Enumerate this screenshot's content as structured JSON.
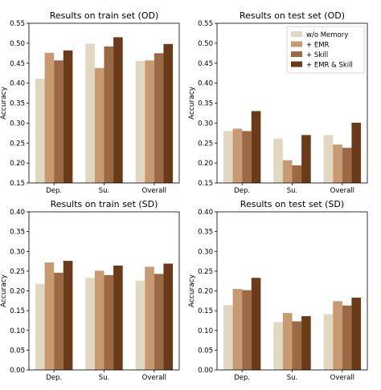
{
  "chart_data": [
    {
      "type": "bar",
      "title": "Results on train set (OD)",
      "xlabel": "",
      "ylabel": "Accuracy",
      "ylim": [
        0.15,
        0.55
      ],
      "yticks": [
        0.15,
        0.2,
        0.25,
        0.3,
        0.35,
        0.4,
        0.45,
        0.5,
        0.55
      ],
      "categories": [
        "Dep.",
        "Su.",
        "Overall"
      ],
      "grid": false,
      "legend": null,
      "series": [
        {
          "name": "w/o Memory",
          "values": [
            0.411,
            0.499,
            0.455
          ]
        },
        {
          "name": "+ EMR",
          "values": [
            0.476,
            0.438,
            0.457
          ]
        },
        {
          "name": "+ Skill",
          "values": [
            0.457,
            0.492,
            0.475
          ]
        },
        {
          "name": "+ EMR & Skill",
          "values": [
            0.482,
            0.515,
            0.498
          ]
        }
      ]
    },
    {
      "type": "bar",
      "title": "Results on test set (OD)",
      "xlabel": "",
      "ylabel": "Accuracy",
      "ylim": [
        0.15,
        0.55
      ],
      "yticks": [
        0.15,
        0.2,
        0.25,
        0.3,
        0.35,
        0.4,
        0.45,
        0.5,
        0.55
      ],
      "categories": [
        "Dep.",
        "Su.",
        "Overall"
      ],
      "grid": false,
      "legend": "top-right",
      "series": [
        {
          "name": "w/o Memory",
          "values": [
            0.28,
            0.261,
            0.27
          ]
        },
        {
          "name": "+ EMR",
          "values": [
            0.286,
            0.207,
            0.246
          ]
        },
        {
          "name": "+ Skill",
          "values": [
            0.28,
            0.194,
            0.238
          ]
        },
        {
          "name": "+ EMR & Skill",
          "values": [
            0.33,
            0.27,
            0.301
          ]
        }
      ]
    },
    {
      "type": "bar",
      "title": "Results on train set (SD)",
      "xlabel": "",
      "ylabel": "Accuracy",
      "ylim": [
        0.0,
        0.4
      ],
      "yticks": [
        0.0,
        0.05,
        0.1,
        0.15,
        0.2,
        0.25,
        0.3,
        0.35,
        0.4
      ],
      "categories": [
        "Dep.",
        "Su.",
        "Overall"
      ],
      "grid": false,
      "legend": null,
      "series": [
        {
          "name": "w/o Memory",
          "values": [
            0.218,
            0.233,
            0.226
          ]
        },
        {
          "name": "+ EMR",
          "values": [
            0.272,
            0.251,
            0.261
          ]
        },
        {
          "name": "+ Skill",
          "values": [
            0.246,
            0.24,
            0.243
          ]
        },
        {
          "name": "+ EMR & Skill",
          "values": [
            0.276,
            0.264,
            0.269
          ]
        }
      ]
    },
    {
      "type": "bar",
      "title": "Results on test set (SD)",
      "xlabel": "",
      "ylabel": "Accuracy",
      "ylim": [
        0.0,
        0.4
      ],
      "yticks": [
        0.0,
        0.05,
        0.1,
        0.15,
        0.2,
        0.25,
        0.3,
        0.35,
        0.4
      ],
      "categories": [
        "Dep.",
        "Su.",
        "Overall"
      ],
      "grid": false,
      "legend": null,
      "series": [
        {
          "name": "w/o Memory",
          "values": [
            0.164,
            0.121,
            0.141
          ]
        },
        {
          "name": "+ EMR",
          "values": [
            0.205,
            0.144,
            0.174
          ]
        },
        {
          "name": "+ Skill",
          "values": [
            0.202,
            0.123,
            0.163
          ]
        },
        {
          "name": "+ EMR & Skill",
          "values": [
            0.233,
            0.136,
            0.183
          ]
        }
      ]
    }
  ],
  "colors": {
    "w/o Memory": "#e1d8c2",
    "+ EMR": "#c89a72",
    "+ Skill": "#9b6a45",
    "+ EMR & Skill": "#6b3a18"
  }
}
